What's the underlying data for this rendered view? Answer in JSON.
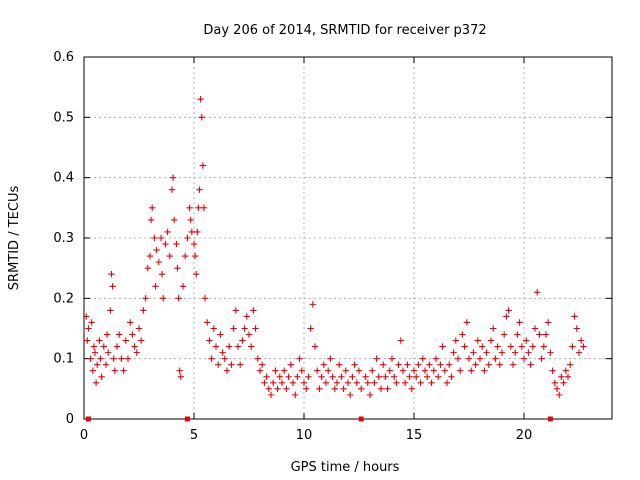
{
  "chart_data": {
    "type": "scatter",
    "title": "Day 206 of 2014, SRMTID for receiver p372",
    "xlabel": "GPS time / hours",
    "ylabel": "SRMTID / TECUs",
    "xlim": [
      0,
      24
    ],
    "ylim": [
      0,
      0.6
    ],
    "x_ticks": [
      0,
      5,
      10,
      15,
      20
    ],
    "y_ticks": [
      0,
      0.1,
      0.2,
      0.3,
      0.4,
      0.5,
      0.6
    ],
    "x_tick_labels": [
      "0",
      "5",
      "10",
      "15",
      "20"
    ],
    "y_tick_labels": [
      "0",
      "0.1",
      "0.2",
      "0.3",
      "0.4",
      "0.5",
      "0.6"
    ],
    "grid": true,
    "marker": "+",
    "color": "#e8000b",
    "series": [
      {
        "name": "SRMTID",
        "points": [
          [
            0.1,
            0.17
          ],
          [
            0.15,
            0.13
          ],
          [
            0.2,
            0.15
          ],
          [
            0.3,
            0.1
          ],
          [
            0.35,
            0.16
          ],
          [
            0.4,
            0.08
          ],
          [
            0.45,
            0.12
          ],
          [
            0.5,
            0.11
          ],
          [
            0.55,
            0.06
          ],
          [
            0.6,
            0.09
          ],
          [
            0.7,
            0.13
          ],
          [
            0.75,
            0.1
          ],
          [
            0.8,
            0.07
          ],
          [
            0.9,
            0.12
          ],
          [
            1.0,
            0.09
          ],
          [
            1.05,
            0.14
          ],
          [
            1.1,
            0.11
          ],
          [
            1.2,
            0.18
          ],
          [
            1.25,
            0.24
          ],
          [
            1.3,
            0.22
          ],
          [
            1.35,
            0.1
          ],
          [
            1.4,
            0.08
          ],
          [
            1.5,
            0.12
          ],
          [
            1.6,
            0.14
          ],
          [
            1.7,
            0.1
          ],
          [
            1.8,
            0.08
          ],
          [
            1.9,
            0.13
          ],
          [
            2.0,
            0.1
          ],
          [
            2.1,
            0.16
          ],
          [
            2.2,
            0.14
          ],
          [
            2.3,
            0.12
          ],
          [
            2.4,
            0.11
          ],
          [
            2.5,
            0.15
          ],
          [
            2.6,
            0.13
          ],
          [
            2.7,
            0.18
          ],
          [
            2.8,
            0.2
          ],
          [
            2.9,
            0.25
          ],
          [
            3.0,
            0.27
          ],
          [
            3.05,
            0.33
          ],
          [
            3.1,
            0.35
          ],
          [
            3.2,
            0.3
          ],
          [
            3.25,
            0.22
          ],
          [
            3.3,
            0.28
          ],
          [
            3.4,
            0.26
          ],
          [
            3.5,
            0.3
          ],
          [
            3.55,
            0.24
          ],
          [
            3.6,
            0.2
          ],
          [
            3.7,
            0.29
          ],
          [
            3.8,
            0.31
          ],
          [
            3.9,
            0.27
          ],
          [
            4.0,
            0.38
          ],
          [
            4.05,
            0.4
          ],
          [
            4.1,
            0.33
          ],
          [
            4.2,
            0.29
          ],
          [
            4.25,
            0.25
          ],
          [
            4.3,
            0.2
          ],
          [
            4.35,
            0.08
          ],
          [
            4.4,
            0.07
          ],
          [
            4.5,
            0.22
          ],
          [
            4.6,
            0.27
          ],
          [
            4.7,
            0.3
          ],
          [
            4.8,
            0.35
          ],
          [
            4.85,
            0.33
          ],
          [
            4.9,
            0.31
          ],
          [
            5.0,
            0.29
          ],
          [
            5.05,
            0.27
          ],
          [
            5.1,
            0.24
          ],
          [
            5.15,
            0.31
          ],
          [
            5.2,
            0.35
          ],
          [
            5.25,
            0.38
          ],
          [
            5.3,
            0.53
          ],
          [
            5.35,
            0.5
          ],
          [
            5.4,
            0.42
          ],
          [
            5.45,
            0.35
          ],
          [
            5.5,
            0.2
          ],
          [
            5.6,
            0.16
          ],
          [
            5.7,
            0.13
          ],
          [
            5.8,
            0.1
          ],
          [
            5.9,
            0.15
          ],
          [
            6.0,
            0.12
          ],
          [
            6.1,
            0.09
          ],
          [
            6.2,
            0.14
          ],
          [
            6.3,
            0.11
          ],
          [
            6.4,
            0.1
          ],
          [
            6.5,
            0.08
          ],
          [
            6.6,
            0.12
          ],
          [
            6.7,
            0.09
          ],
          [
            6.8,
            0.15
          ],
          [
            6.9,
            0.18
          ],
          [
            7.0,
            0.12
          ],
          [
            7.1,
            0.09
          ],
          [
            7.2,
            0.13
          ],
          [
            7.3,
            0.15
          ],
          [
            7.4,
            0.17
          ],
          [
            7.5,
            0.14
          ],
          [
            7.6,
            0.12
          ],
          [
            7.7,
            0.18
          ],
          [
            7.8,
            0.15
          ],
          [
            7.9,
            0.1
          ],
          [
            8.0,
            0.08
          ],
          [
            8.1,
            0.09
          ],
          [
            8.2,
            0.06
          ],
          [
            8.3,
            0.07
          ],
          [
            8.4,
            0.05
          ],
          [
            8.5,
            0.04
          ],
          [
            8.6,
            0.06
          ],
          [
            8.7,
            0.08
          ],
          [
            8.8,
            0.05
          ],
          [
            8.9,
            0.07
          ],
          [
            9.0,
            0.06
          ],
          [
            9.1,
            0.08
          ],
          [
            9.2,
            0.05
          ],
          [
            9.3,
            0.07
          ],
          [
            9.4,
            0.09
          ],
          [
            9.5,
            0.06
          ],
          [
            9.6,
            0.04
          ],
          [
            9.7,
            0.07
          ],
          [
            9.8,
            0.1
          ],
          [
            9.9,
            0.08
          ],
          [
            10.0,
            0.06
          ],
          [
            10.1,
            0.05
          ],
          [
            10.2,
            0.07
          ],
          [
            10.3,
            0.15
          ],
          [
            10.4,
            0.19
          ],
          [
            10.5,
            0.12
          ],
          [
            10.6,
            0.08
          ],
          [
            10.7,
            0.05
          ],
          [
            10.8,
            0.07
          ],
          [
            10.9,
            0.09
          ],
          [
            11.0,
            0.06
          ],
          [
            11.1,
            0.08
          ],
          [
            11.2,
            0.1
          ],
          [
            11.3,
            0.07
          ],
          [
            11.4,
            0.05
          ],
          [
            11.5,
            0.06
          ],
          [
            11.6,
            0.09
          ],
          [
            11.7,
            0.07
          ],
          [
            11.8,
            0.05
          ],
          [
            11.9,
            0.08
          ],
          [
            12.0,
            0.06
          ],
          [
            12.1,
            0.04
          ],
          [
            12.2,
            0.07
          ],
          [
            12.3,
            0.09
          ],
          [
            12.4,
            0.06
          ],
          [
            12.5,
            0.08
          ],
          [
            12.6,
            0.05
          ],
          [
            12.8,
            0.07
          ],
          [
            12.9,
            0.06
          ],
          [
            13.0,
            0.04
          ],
          [
            13.1,
            0.08
          ],
          [
            13.2,
            0.06
          ],
          [
            13.3,
            0.1
          ],
          [
            13.4,
            0.07
          ],
          [
            13.5,
            0.05
          ],
          [
            13.6,
            0.09
          ],
          [
            13.7,
            0.07
          ],
          [
            13.8,
            0.05
          ],
          [
            13.9,
            0.08
          ],
          [
            14.0,
            0.1
          ],
          [
            14.1,
            0.07
          ],
          [
            14.2,
            0.06
          ],
          [
            14.3,
            0.09
          ],
          [
            14.4,
            0.13
          ],
          [
            14.5,
            0.08
          ],
          [
            14.6,
            0.06
          ],
          [
            14.7,
            0.09
          ],
          [
            14.8,
            0.07
          ],
          [
            14.9,
            0.05
          ],
          [
            15.0,
            0.08
          ],
          [
            15.1,
            0.07
          ],
          [
            15.2,
            0.09
          ],
          [
            15.3,
            0.06
          ],
          [
            15.4,
            0.1
          ],
          [
            15.5,
            0.08
          ],
          [
            15.6,
            0.07
          ],
          [
            15.7,
            0.09
          ],
          [
            15.8,
            0.06
          ],
          [
            15.9,
            0.08
          ],
          [
            16.0,
            0.1
          ],
          [
            16.1,
            0.07
          ],
          [
            16.2,
            0.09
          ],
          [
            16.3,
            0.12
          ],
          [
            16.4,
            0.08
          ],
          [
            16.5,
            0.06
          ],
          [
            16.6,
            0.09
          ],
          [
            16.7,
            0.07
          ],
          [
            16.8,
            0.11
          ],
          [
            16.9,
            0.13
          ],
          [
            17.0,
            0.1
          ],
          [
            17.1,
            0.08
          ],
          [
            17.2,
            0.14
          ],
          [
            17.3,
            0.12
          ],
          [
            17.4,
            0.16
          ],
          [
            17.5,
            0.1
          ],
          [
            17.6,
            0.08
          ],
          [
            17.7,
            0.11
          ],
          [
            17.8,
            0.09
          ],
          [
            17.9,
            0.13
          ],
          [
            18.0,
            0.1
          ],
          [
            18.1,
            0.12
          ],
          [
            18.2,
            0.08
          ],
          [
            18.3,
            0.11
          ],
          [
            18.4,
            0.09
          ],
          [
            18.5,
            0.13
          ],
          [
            18.6,
            0.15
          ],
          [
            18.7,
            0.1
          ],
          [
            18.8,
            0.12
          ],
          [
            18.9,
            0.09
          ],
          [
            19.0,
            0.11
          ],
          [
            19.1,
            0.14
          ],
          [
            19.2,
            0.17
          ],
          [
            19.3,
            0.18
          ],
          [
            19.4,
            0.12
          ],
          [
            19.5,
            0.09
          ],
          [
            19.6,
            0.11
          ],
          [
            19.7,
            0.14
          ],
          [
            19.8,
            0.16
          ],
          [
            19.9,
            0.12
          ],
          [
            20.0,
            0.1
          ],
          [
            20.1,
            0.13
          ],
          [
            20.2,
            0.11
          ],
          [
            20.3,
            0.09
          ],
          [
            20.4,
            0.12
          ],
          [
            20.5,
            0.15
          ],
          [
            20.6,
            0.21
          ],
          [
            20.7,
            0.14
          ],
          [
            20.8,
            0.1
          ],
          [
            20.9,
            0.12
          ],
          [
            21.0,
            0.14
          ],
          [
            21.1,
            0.16
          ],
          [
            21.2,
            0.11
          ],
          [
            21.3,
            0.08
          ],
          [
            21.4,
            0.06
          ],
          [
            21.5,
            0.05
          ],
          [
            21.6,
            0.04
          ],
          [
            21.7,
            0.07
          ],
          [
            21.8,
            0.06
          ],
          [
            21.9,
            0.08
          ],
          [
            22.0,
            0.07
          ],
          [
            22.1,
            0.09
          ],
          [
            22.2,
            0.12
          ],
          [
            22.3,
            0.17
          ],
          [
            22.4,
            0.15
          ],
          [
            22.5,
            0.11
          ],
          [
            22.6,
            0.13
          ],
          [
            22.7,
            0.12
          ]
        ]
      }
    ],
    "axis_marks_x": [
      0.2,
      4.7,
      12.6,
      21.2
    ]
  }
}
